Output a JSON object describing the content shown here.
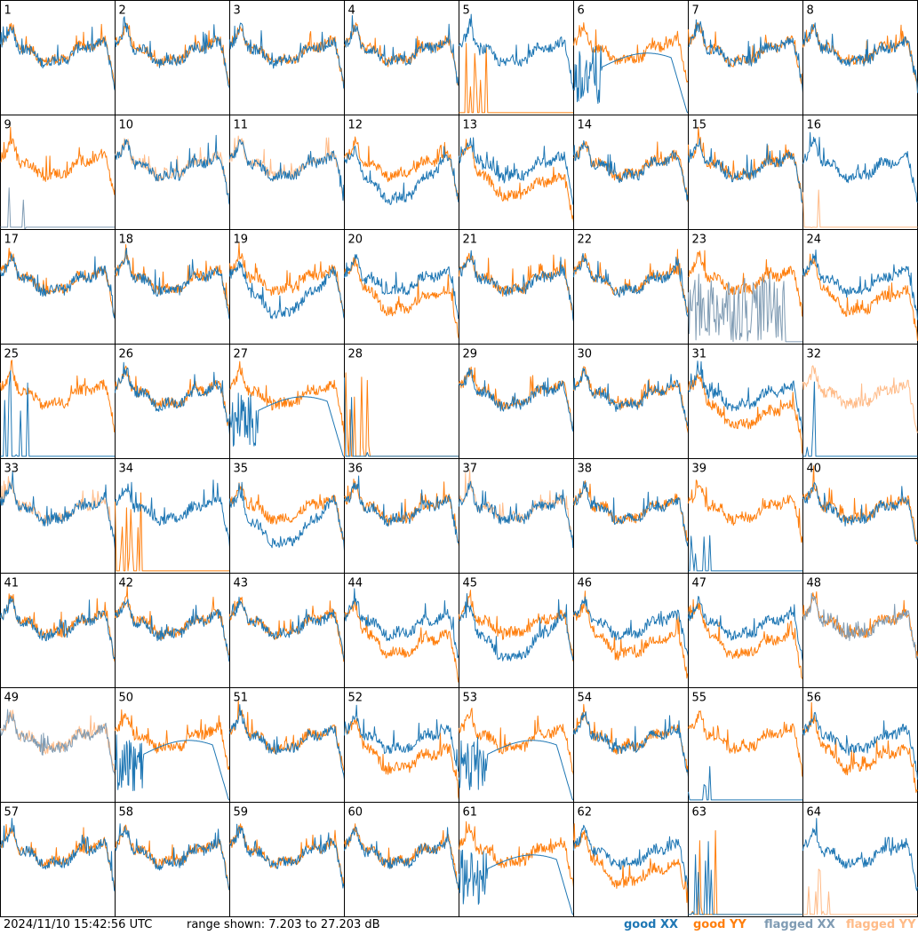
{
  "footer": {
    "timestamp": "2024/11/10 15:42:56 UTC",
    "range": "range shown: 7.203 to 27.203 dB"
  },
  "legend": [
    {
      "label": "good XX",
      "color": "#1f77b4"
    },
    {
      "label": "good YY",
      "color": "#ff7f0e"
    },
    {
      "label": "flagged XX",
      "color": "#7f9bb3"
    },
    {
      "label": "flagged YY",
      "color": "#ffbb88"
    }
  ],
  "chart_data": {
    "type": "line",
    "grid": "8x8 small multiples",
    "ylim": [
      7.203,
      27.203
    ],
    "yunit": "dB",
    "panels": [
      {
        "n": "1",
        "xx": "good",
        "yy": "good",
        "shape": "drop"
      },
      {
        "n": "2",
        "xx": "good",
        "yy": "good",
        "shape": "normal"
      },
      {
        "n": "3",
        "xx": "good",
        "yy": "good",
        "shape": "normal"
      },
      {
        "n": "4",
        "xx": "good",
        "yy": "good",
        "shape": "normal"
      },
      {
        "n": "5",
        "xx": "good",
        "yy": "good",
        "shape": "yyzero"
      },
      {
        "n": "6",
        "xx": "good",
        "yy": "good",
        "shape": "xxdip"
      },
      {
        "n": "7",
        "xx": "good",
        "yy": "good",
        "shape": "normal"
      },
      {
        "n": "8",
        "xx": "good",
        "yy": "good",
        "shape": "normal"
      },
      {
        "n": "9",
        "xx": "flagged",
        "yy": "good",
        "shape": "xxzero"
      },
      {
        "n": "10",
        "xx": "good",
        "yy": "flagged",
        "shape": "normal"
      },
      {
        "n": "11",
        "xx": "good",
        "yy": "flagged",
        "shape": "normal"
      },
      {
        "n": "12",
        "xx": "good",
        "yy": "good",
        "shape": "xxlow"
      },
      {
        "n": "13",
        "xx": "good",
        "yy": "good",
        "shape": "yylow"
      },
      {
        "n": "14",
        "xx": "good",
        "yy": "good",
        "shape": "normal"
      },
      {
        "n": "15",
        "xx": "good",
        "yy": "good",
        "shape": "normal"
      },
      {
        "n": "16",
        "xx": "good",
        "yy": "flagged",
        "shape": "yyzero"
      },
      {
        "n": "17",
        "xx": "good",
        "yy": "good",
        "shape": "normal"
      },
      {
        "n": "18",
        "xx": "good",
        "yy": "good",
        "shape": "normal"
      },
      {
        "n": "19",
        "xx": "good",
        "yy": "good",
        "shape": "xxlow"
      },
      {
        "n": "20",
        "xx": "good",
        "yy": "good",
        "shape": "yylow"
      },
      {
        "n": "21",
        "xx": "good",
        "yy": "good",
        "shape": "normal"
      },
      {
        "n": "22",
        "xx": "good",
        "yy": "good",
        "shape": "normal"
      },
      {
        "n": "23",
        "xx": "flagged",
        "yy": "good",
        "shape": "xxnoise"
      },
      {
        "n": "24",
        "xx": "good",
        "yy": "good",
        "shape": "yylow"
      },
      {
        "n": "25",
        "xx": "good",
        "yy": "good",
        "shape": "xxzero"
      },
      {
        "n": "26",
        "xx": "good",
        "yy": "good",
        "shape": "normal"
      },
      {
        "n": "27",
        "xx": "good",
        "yy": "good",
        "shape": "xxdip"
      },
      {
        "n": "28",
        "xx": "good",
        "yy": "good",
        "shape": "dead"
      },
      {
        "n": "29",
        "xx": "good",
        "yy": "good",
        "shape": "normal"
      },
      {
        "n": "30",
        "xx": "good",
        "yy": "good",
        "shape": "normal"
      },
      {
        "n": "31",
        "xx": "good",
        "yy": "good",
        "shape": "yylow"
      },
      {
        "n": "32",
        "xx": "good",
        "yy": "flagged",
        "shape": "xxzero"
      },
      {
        "n": "33",
        "xx": "good",
        "yy": "flagged",
        "shape": "normal"
      },
      {
        "n": "34",
        "xx": "good",
        "yy": "good",
        "shape": "yyzero"
      },
      {
        "n": "35",
        "xx": "good",
        "yy": "good",
        "shape": "xxlow"
      },
      {
        "n": "36",
        "xx": "good",
        "yy": "good",
        "shape": "normal"
      },
      {
        "n": "37",
        "xx": "good",
        "yy": "flagged",
        "shape": "normal"
      },
      {
        "n": "38",
        "xx": "good",
        "yy": "good",
        "shape": "normal"
      },
      {
        "n": "39",
        "xx": "good",
        "yy": "good",
        "shape": "xxzero"
      },
      {
        "n": "40",
        "xx": "good",
        "yy": "good",
        "shape": "normal"
      },
      {
        "n": "41",
        "xx": "good",
        "yy": "good",
        "shape": "normal"
      },
      {
        "n": "42",
        "xx": "good",
        "yy": "good",
        "shape": "normal"
      },
      {
        "n": "43",
        "xx": "good",
        "yy": "good",
        "shape": "normal"
      },
      {
        "n": "44",
        "xx": "good",
        "yy": "good",
        "shape": "yylow"
      },
      {
        "n": "45",
        "xx": "good",
        "yy": "good",
        "shape": "xxlow"
      },
      {
        "n": "46",
        "xx": "good",
        "yy": "good",
        "shape": "yylow"
      },
      {
        "n": "47",
        "xx": "good",
        "yy": "good",
        "shape": "yylow"
      },
      {
        "n": "48",
        "xx": "flagged",
        "yy": "good",
        "shape": "normal"
      },
      {
        "n": "49",
        "xx": "flagged",
        "yy": "flagged",
        "shape": "normal"
      },
      {
        "n": "50",
        "xx": "good",
        "yy": "good",
        "shape": "xxdip"
      },
      {
        "n": "51",
        "xx": "good",
        "yy": "good",
        "shape": "normal"
      },
      {
        "n": "52",
        "xx": "good",
        "yy": "good",
        "shape": "yylow"
      },
      {
        "n": "53",
        "xx": "good",
        "yy": "good",
        "shape": "xxdip"
      },
      {
        "n": "54",
        "xx": "good",
        "yy": "good",
        "shape": "normal"
      },
      {
        "n": "55",
        "xx": "good",
        "yy": "good",
        "shape": "xxzero"
      },
      {
        "n": "56",
        "xx": "good",
        "yy": "good",
        "shape": "yylow"
      },
      {
        "n": "57",
        "xx": "good",
        "yy": "good",
        "shape": "normal"
      },
      {
        "n": "58",
        "xx": "good",
        "yy": "good",
        "shape": "normal"
      },
      {
        "n": "59",
        "xx": "good",
        "yy": "good",
        "shape": "normal"
      },
      {
        "n": "60",
        "xx": "good",
        "yy": "good",
        "shape": "normal"
      },
      {
        "n": "61",
        "xx": "good",
        "yy": "good",
        "shape": "xxdip"
      },
      {
        "n": "62",
        "xx": "good",
        "yy": "good",
        "shape": "yylow"
      },
      {
        "n": "63",
        "xx": "good",
        "yy": "good",
        "shape": "dead"
      },
      {
        "n": "64",
        "xx": "good",
        "yy": "flagged",
        "shape": "yyzero"
      }
    ]
  }
}
